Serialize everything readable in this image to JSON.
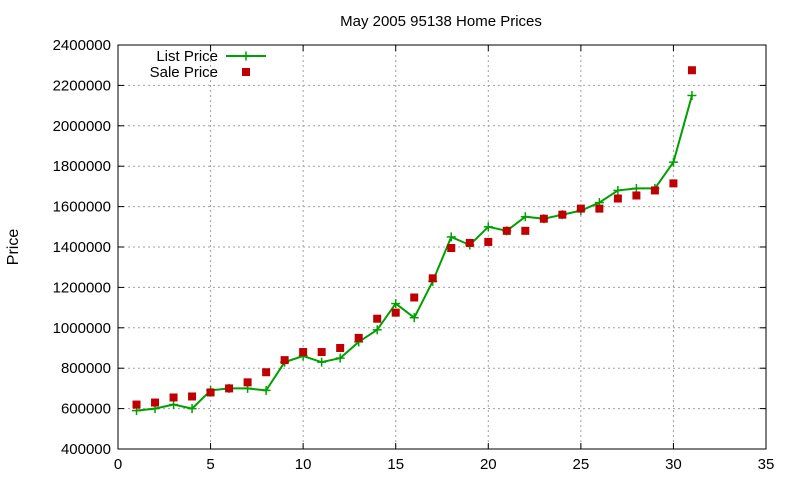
{
  "chart_data": {
    "type": "line",
    "title": "May 2005 95138 Home Prices",
    "xlabel": "",
    "ylabel": "Price",
    "xlim": [
      0,
      35
    ],
    "ylim": [
      400000,
      2400000
    ],
    "x_ticks": [
      0,
      5,
      10,
      15,
      20,
      25,
      30,
      35
    ],
    "y_ticks": [
      400000,
      600000,
      800000,
      1000000,
      1200000,
      1400000,
      1600000,
      1800000,
      2000000,
      2200000,
      2400000
    ],
    "grid": true,
    "legend_position": "top-left",
    "series": [
      {
        "name": "List Price",
        "style": "linespoints",
        "color": "#00a000",
        "marker": "plus",
        "x": [
          1,
          2,
          3,
          4,
          5,
          6,
          7,
          8,
          9,
          10,
          11,
          12,
          13,
          14,
          15,
          16,
          17,
          18,
          19,
          20,
          21,
          22,
          23,
          24,
          25,
          26,
          27,
          28,
          29,
          30,
          31
        ],
        "y": [
          590000,
          600000,
          620000,
          600000,
          690000,
          700000,
          700000,
          690000,
          830000,
          860000,
          830000,
          850000,
          930000,
          990000,
          1120000,
          1050000,
          1230000,
          1450000,
          1410000,
          1500000,
          1480000,
          1550000,
          1540000,
          1560000,
          1580000,
          1620000,
          1680000,
          1690000,
          1690000,
          1820000,
          2150000
        ]
      },
      {
        "name": "Sale Price",
        "style": "points",
        "color": "#c00000",
        "marker": "square",
        "x": [
          1,
          2,
          3,
          4,
          5,
          6,
          7,
          8,
          9,
          10,
          11,
          12,
          13,
          14,
          15,
          16,
          17,
          18,
          19,
          20,
          21,
          22,
          23,
          24,
          25,
          26,
          27,
          28,
          29,
          30,
          31
        ],
        "y": [
          620000,
          630000,
          655000,
          660000,
          680000,
          700000,
          730000,
          780000,
          840000,
          880000,
          880000,
          900000,
          950000,
          1045000,
          1075000,
          1150000,
          1245000,
          1395000,
          1420000,
          1425000,
          1480000,
          1480000,
          1540000,
          1560000,
          1590000,
          1590000,
          1640000,
          1655000,
          1680000,
          1715000,
          2275000
        ]
      }
    ]
  }
}
